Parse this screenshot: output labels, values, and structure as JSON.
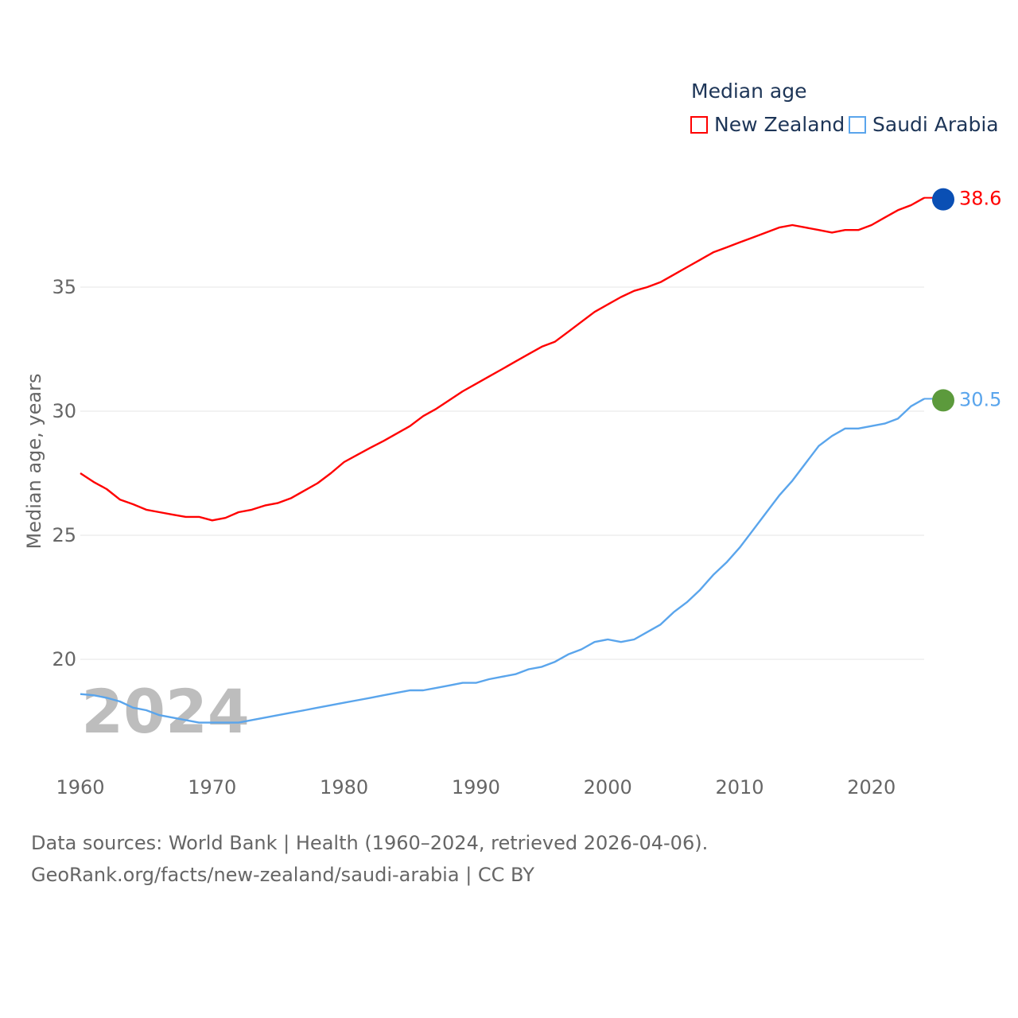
{
  "chart_data": {
    "type": "line",
    "title": "Median age",
    "ylabel": "Median age, years",
    "xlabel": "",
    "xlim": [
      1960,
      2024
    ],
    "ylim": [
      16.3,
      39.5
    ],
    "x_ticks": [
      "1960",
      "1970",
      "1980",
      "1990",
      "2000",
      "2010",
      "2020"
    ],
    "y_ticks": [
      "20",
      "25",
      "30",
      "35"
    ],
    "grid": true,
    "legend_placement": "top-right",
    "year_watermark": "2024",
    "x": [
      1960,
      1961,
      1962,
      1963,
      1964,
      1965,
      1966,
      1967,
      1968,
      1969,
      1970,
      1971,
      1972,
      1973,
      1974,
      1975,
      1976,
      1977,
      1978,
      1979,
      1980,
      1981,
      1982,
      1983,
      1984,
      1985,
      1986,
      1987,
      1988,
      1989,
      1990,
      1991,
      1992,
      1993,
      1994,
      1995,
      1996,
      1997,
      1998,
      1999,
      2000,
      2001,
      2002,
      2003,
      2004,
      2005,
      2006,
      2007,
      2008,
      2009,
      2010,
      2011,
      2012,
      2013,
      2014,
      2015,
      2016,
      2017,
      2018,
      2019,
      2020,
      2021,
      2022,
      2023,
      2024
    ],
    "series": [
      {
        "name": "New Zealand",
        "color": "#ff0000",
        "end_label": "38.6",
        "flag_color": "#0a4fb4",
        "values": [
          27.5,
          27.15,
          26.86,
          26.44,
          26.25,
          26.03,
          25.93,
          25.83,
          25.74,
          25.74,
          25.6,
          25.7,
          25.93,
          26.03,
          26.2,
          26.3,
          26.5,
          26.8,
          27.1,
          27.5,
          27.95,
          28.24,
          28.53,
          28.8,
          29.1,
          29.4,
          29.8,
          30.1,
          30.45,
          30.8,
          31.1,
          31.4,
          31.7,
          32.0,
          32.3,
          32.6,
          32.8,
          33.2,
          33.6,
          34.0,
          34.3,
          34.6,
          34.85,
          35.0,
          35.2,
          35.5,
          35.8,
          36.1,
          36.4,
          36.6,
          36.8,
          37.0,
          37.2,
          37.4,
          37.5,
          37.4,
          37.3,
          37.2,
          37.3,
          37.3,
          37.5,
          37.8,
          38.1,
          38.3,
          38.6
        ]
      },
      {
        "name": "Saudi Arabia",
        "color": "#5aa5ec",
        "end_label": "30.5",
        "flag_color": "#5c9a3c",
        "values": [
          18.6,
          18.55,
          18.45,
          18.3,
          18.05,
          17.95,
          17.75,
          17.65,
          17.55,
          17.45,
          17.45,
          17.45,
          17.45,
          17.55,
          17.65,
          17.75,
          17.85,
          17.95,
          18.05,
          18.15,
          18.25,
          18.35,
          18.45,
          18.55,
          18.65,
          18.75,
          18.75,
          18.85,
          18.95,
          19.05,
          19.05,
          19.2,
          19.3,
          19.4,
          19.6,
          19.7,
          19.9,
          20.2,
          20.4,
          20.7,
          20.8,
          20.7,
          20.8,
          21.1,
          21.4,
          21.9,
          22.3,
          22.8,
          23.4,
          23.9,
          24.5,
          25.2,
          25.9,
          26.6,
          27.2,
          27.9,
          28.6,
          29.0,
          29.3,
          29.3,
          29.4,
          29.5,
          29.7,
          30.2,
          30.5
        ]
      }
    ]
  },
  "footer": {
    "line1": "Data sources: World Bank | Health (1960–2024, retrieved 2026-04-06).",
    "line2": "GeoRank.org/facts/new-zealand/saudi-arabia | CC BY"
  }
}
